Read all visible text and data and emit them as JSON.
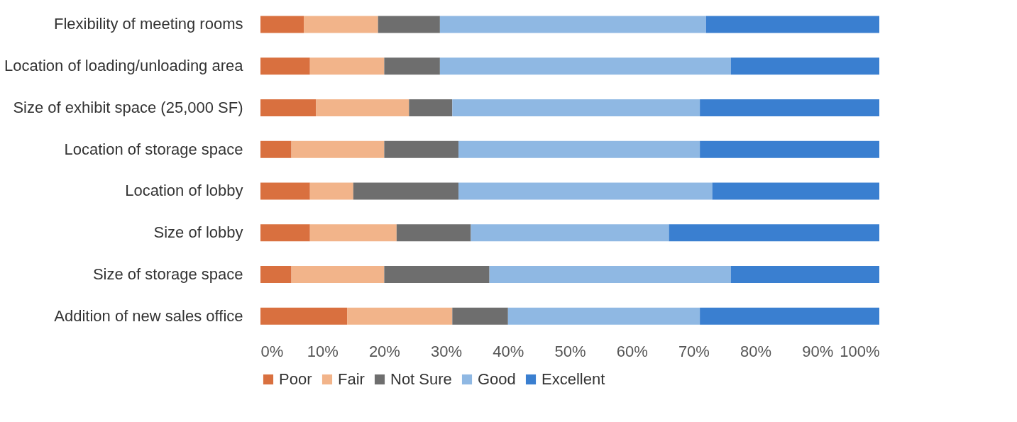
{
  "chart_data": {
    "type": "bar",
    "orientation": "horizontal",
    "stacked": true,
    "categories": [
      "Flexibility of meeting rooms",
      "Location of loading/unloading area",
      "Size of exhibit space (25,000 SF)",
      "Location of storage space",
      "Location of lobby",
      "Size of lobby",
      "Size of storage space",
      "Addition of new sales office"
    ],
    "series": [
      {
        "name": "Poor",
        "color": "#d9703f",
        "values": [
          7,
          8,
          9,
          5,
          8,
          8,
          5,
          14
        ]
      },
      {
        "name": "Fair",
        "color": "#f2b48a",
        "values": [
          12,
          12,
          15,
          15,
          7,
          14,
          15,
          17
        ]
      },
      {
        "name": "Not Sure",
        "color": "#6e6e6e",
        "values": [
          10,
          9,
          7,
          12,
          17,
          12,
          17,
          9
        ]
      },
      {
        "name": "Good",
        "color": "#8fb8e3",
        "values": [
          43,
          47,
          40,
          39,
          41,
          32,
          39,
          31
        ]
      },
      {
        "name": "Excellent",
        "color": "#3a7fd0",
        "values": [
          28,
          24,
          29,
          29,
          27,
          34,
          24,
          29
        ]
      }
    ],
    "xlim": [
      0,
      100
    ],
    "xticks": [
      {
        "value": 0,
        "label": "0%"
      },
      {
        "value": 10,
        "label": "10%"
      },
      {
        "value": 20,
        "label": "20%"
      },
      {
        "value": 30,
        "label": "30%"
      },
      {
        "value": 40,
        "label": "40%"
      },
      {
        "value": 50,
        "label": "50%"
      },
      {
        "value": 60,
        "label": "60%"
      },
      {
        "value": 70,
        "label": "70%"
      },
      {
        "value": 80,
        "label": "80%"
      },
      {
        "value": 90,
        "label": "90%"
      },
      {
        "value": 100,
        "label": "100%"
      }
    ],
    "grid": false,
    "legend": "bottom"
  }
}
